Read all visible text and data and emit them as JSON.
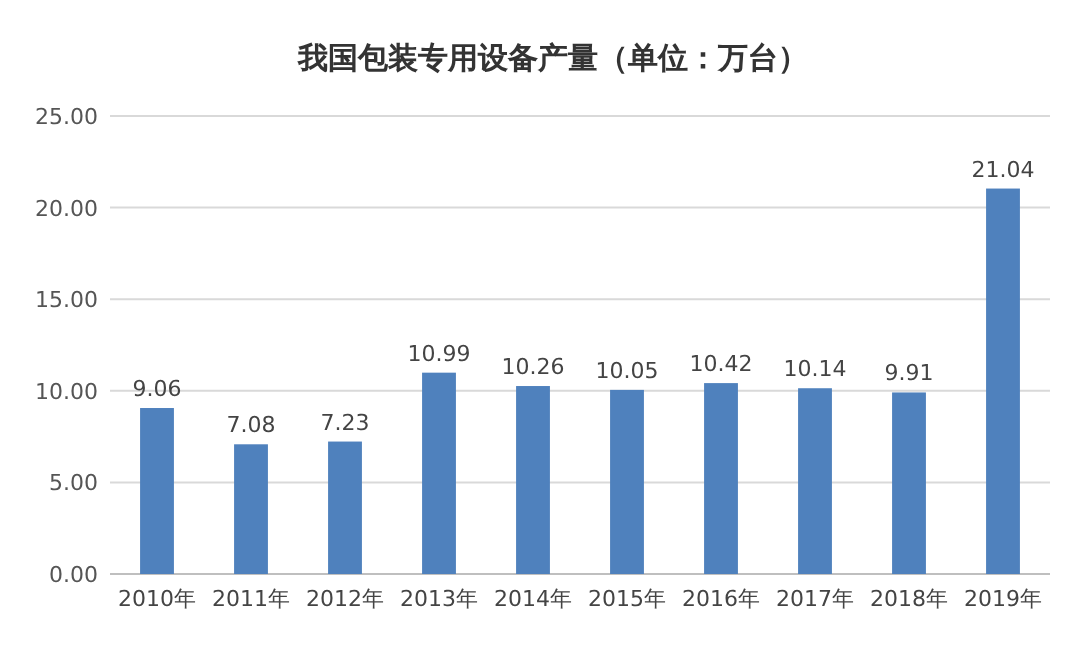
{
  "chart_data": {
    "type": "bar",
    "title": "我国包装专用设备产量（单位：万台）",
    "categories": [
      "2010年",
      "2011年",
      "2012年",
      "2013年",
      "2014年",
      "2015年",
      "2016年",
      "2017年",
      "2018年",
      "2019年"
    ],
    "values": [
      9.06,
      7.08,
      7.23,
      10.99,
      10.26,
      10.05,
      10.42,
      10.14,
      9.91,
      21.04
    ],
    "color": "#4f81bd",
    "data_labels": true,
    "grid": "y",
    "ylim": [
      0,
      25
    ],
    "yticks": [
      {
        "value": 0,
        "label": "0.00"
      },
      {
        "value": 5,
        "label": "5.00"
      },
      {
        "value": 10,
        "label": "10.00"
      },
      {
        "value": 15,
        "label": "15.00"
      },
      {
        "value": 20,
        "label": "20.00"
      },
      {
        "value": 25,
        "label": "25.00"
      }
    ]
  }
}
